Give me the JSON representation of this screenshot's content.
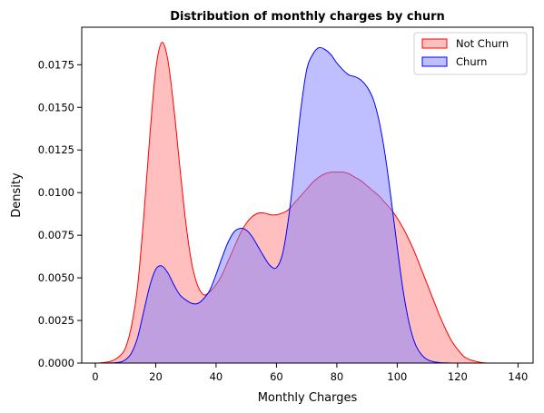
{
  "chart_data": {
    "type": "area",
    "subtype": "kde",
    "title": "Distribution of monthly charges by churn",
    "xlabel": "Monthly Charges",
    "ylabel": "Density",
    "xlim": [
      -4.5,
      145
    ],
    "ylim": [
      0,
      0.0197
    ],
    "xticks": [
      0,
      20,
      40,
      60,
      80,
      100,
      120,
      140
    ],
    "xtick_labels": [
      "0",
      "20",
      "40",
      "60",
      "80",
      "100",
      "120",
      "140"
    ],
    "yticks": [
      0,
      0.0025,
      0.005,
      0.0075,
      0.01,
      0.0125,
      0.015,
      0.0175
    ],
    "ytick_labels": [
      "0.0000",
      "0.0025",
      "0.0050",
      "0.0075",
      "0.0100",
      "0.0125",
      "0.0150",
      "0.0175"
    ],
    "legend_position": "top-right",
    "series": [
      {
        "name": "Not Churn",
        "line_color": "#ff0000",
        "fill_color": "#ff8080",
        "fill_opacity": 0.5,
        "x": [
          1,
          5,
          8,
          10,
          12,
          14,
          16,
          18,
          20,
          22,
          24,
          26,
          28,
          30,
          32,
          34,
          36,
          38,
          40,
          42,
          44,
          46,
          48,
          50,
          52,
          54,
          56,
          58,
          60,
          62,
          64,
          66,
          68,
          70,
          72,
          74,
          76,
          78,
          80,
          82,
          84,
          86,
          88,
          90,
          92,
          94,
          96,
          98,
          100,
          102,
          104,
          106,
          108,
          110,
          112,
          114,
          116,
          118,
          120,
          122,
          124,
          126,
          128,
          130
        ],
        "y": [
          0,
          0.0001,
          0.0004,
          0.0009,
          0.0022,
          0.0045,
          0.0085,
          0.0132,
          0.0172,
          0.0188,
          0.0178,
          0.015,
          0.0115,
          0.0082,
          0.0058,
          0.0045,
          0.004,
          0.0042,
          0.0046,
          0.0052,
          0.006,
          0.0068,
          0.0076,
          0.0082,
          0.0086,
          0.0088,
          0.0088,
          0.0087,
          0.0087,
          0.0088,
          0.009,
          0.0094,
          0.0098,
          0.0102,
          0.0106,
          0.0109,
          0.0111,
          0.0112,
          0.0112,
          0.0112,
          0.0111,
          0.0109,
          0.0107,
          0.0104,
          0.0101,
          0.0098,
          0.0094,
          0.009,
          0.0085,
          0.0079,
          0.0072,
          0.0064,
          0.0055,
          0.0046,
          0.0037,
          0.0028,
          0.002,
          0.0013,
          0.0008,
          0.0004,
          0.0002,
          0.0001,
          3e-05,
          0
        ]
      },
      {
        "name": "Churn",
        "line_color": "#0000ff",
        "fill_color": "#8080ff",
        "fill_opacity": 0.5,
        "x": [
          4,
          8,
          10,
          12,
          14,
          16,
          18,
          20,
          22,
          24,
          26,
          28,
          30,
          32,
          34,
          36,
          38,
          40,
          42,
          44,
          46,
          48,
          50,
          52,
          54,
          56,
          58,
          60,
          62,
          64,
          66,
          68,
          70,
          72,
          74,
          76,
          78,
          80,
          82,
          84,
          86,
          88,
          90,
          92,
          94,
          96,
          98,
          100,
          102,
          104,
          106,
          108,
          110,
          112,
          114,
          116,
          118,
          120,
          122,
          125,
          130,
          135
        ],
        "y": [
          0,
          5e-05,
          0.0002,
          0.0006,
          0.0015,
          0.003,
          0.0045,
          0.0055,
          0.0057,
          0.0053,
          0.0046,
          0.004,
          0.0037,
          0.0035,
          0.0035,
          0.0038,
          0.0043,
          0.0052,
          0.0062,
          0.0071,
          0.0077,
          0.0079,
          0.0078,
          0.0074,
          0.0068,
          0.0062,
          0.0057,
          0.0056,
          0.0064,
          0.0085,
          0.0115,
          0.0148,
          0.0172,
          0.0181,
          0.0185,
          0.0184,
          0.0181,
          0.0176,
          0.0172,
          0.0169,
          0.0168,
          0.0166,
          0.0162,
          0.0155,
          0.0142,
          0.0122,
          0.0096,
          0.0068,
          0.0042,
          0.0023,
          0.0011,
          0.0005,
          0.0002,
          8e-05,
          3e-05,
          1e-05,
          0,
          0,
          0,
          0,
          0,
          0
        ]
      }
    ]
  }
}
